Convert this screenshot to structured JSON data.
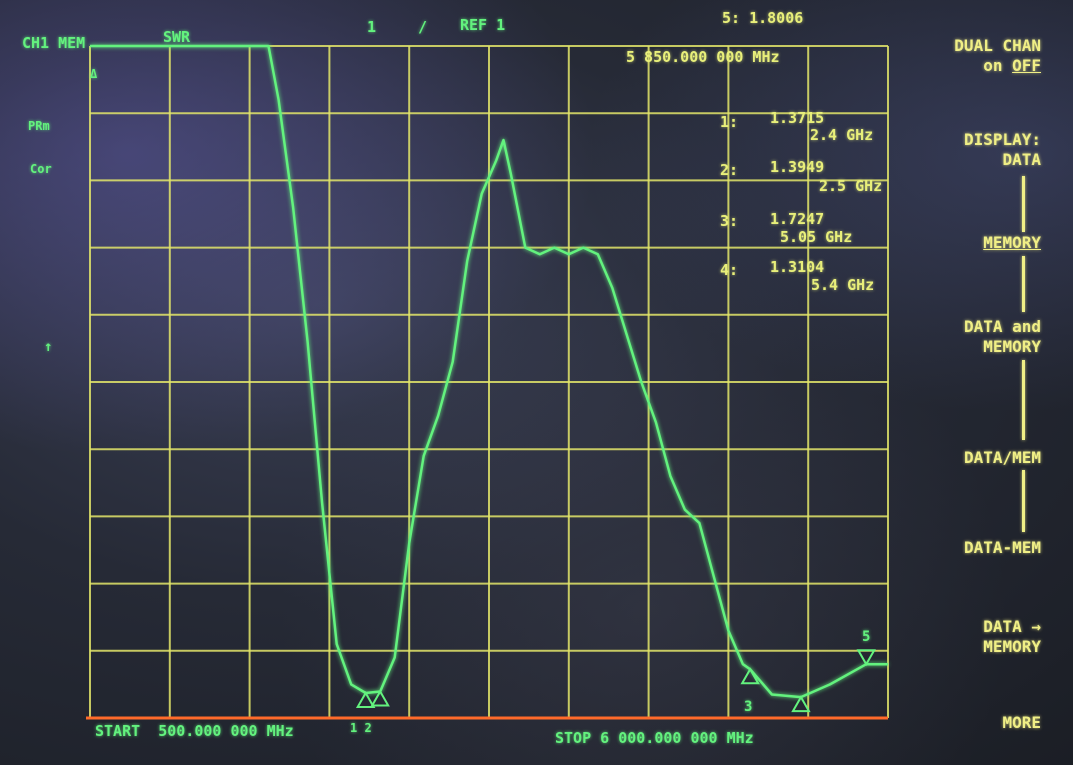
{
  "header": {
    "channel_label": "CH1 MEM",
    "format_label": "SWR",
    "scale_label": "1",
    "scale_slash": "/",
    "ref_label": "REF 1",
    "active_marker_label": "5: 1.8006",
    "active_marker_freq": "5 850.000 000 MHz"
  },
  "left_annotations": {
    "delta": "Δ",
    "prm": "PRm",
    "cor": "Cor",
    "ref_arrow": "↑"
  },
  "markers": [
    {
      "label": "1:",
      "value": "1.3715",
      "freq": "2.4 GHz"
    },
    {
      "label": "2:",
      "value": "1.3949",
      "freq": "2.5 GHz"
    },
    {
      "label": "3:",
      "value": "1.7247",
      "freq": "5.05 GHz"
    },
    {
      "label": "4:",
      "value": "1.3104",
      "freq": "5.4 GHz"
    }
  ],
  "marker_tags": {
    "m12": "1 2",
    "m3": "3",
    "m5": "5"
  },
  "footer": {
    "start_label": "START  500.000 000 MHz",
    "stop_label": "STOP 6 000.000 000 MHz"
  },
  "softkeys": {
    "dual_chan_line1": "DUAL CHAN",
    "dual_chan_on": "on ",
    "dual_chan_off": "OFF",
    "display_line1": "DISPLAY:",
    "display_line2": "DATA",
    "memory": "MEMORY",
    "data_and_memory_line1": "DATA and",
    "data_and_memory_line2": "MEMORY",
    "data_mem_div": "DATA/MEM",
    "data_mem_sub": "DATA-MEM",
    "data_to_memory_line1": "DATA →",
    "data_to_memory_line2": "MEMORY",
    "more": "MORE"
  },
  "colors": {
    "trace": "#63f27e",
    "grid": "#e3e66a",
    "annotation_yellow": "#f0ef86",
    "baseline": "#ff6a2a"
  },
  "chart_data": {
    "type": "line",
    "xlim": [
      500,
      6000
    ],
    "ylim": [
      1,
      11
    ],
    "x_unit": "MHz",
    "y_unit": "SWR",
    "grid": true,
    "series": [
      {
        "x": [
          500,
          1000,
          1730,
          1800,
          1900,
          2000,
          2100,
          2200,
          2300,
          2400,
          2500,
          2600,
          2700,
          2800,
          2900,
          3000,
          3100,
          3200,
          3300,
          3350,
          3400,
          3500,
          3600,
          3700,
          3800,
          3900,
          4000,
          4100,
          4200,
          4300,
          4400,
          4500,
          4600,
          4700,
          4800,
          4900,
          5000,
          5050,
          5200,
          5400,
          5600,
          5850,
          6000
        ],
        "y": [
          11,
          11,
          11,
          10.2,
          8.6,
          6.6,
          4.2,
          2.1,
          1.5,
          1.3715,
          1.3949,
          1.9,
          3.6,
          4.9,
          5.5,
          6.3,
          7.8,
          8.8,
          9.3,
          9.6,
          9.1,
          8.0,
          7.9,
          8.0,
          7.9,
          8.0,
          7.9,
          7.4,
          6.7,
          6.0,
          5.4,
          4.6,
          4.1,
          3.9,
          3.1,
          2.3,
          1.8,
          1.7247,
          1.35,
          1.3104,
          1.5,
          1.8006,
          1.8
        ]
      }
    ]
  }
}
